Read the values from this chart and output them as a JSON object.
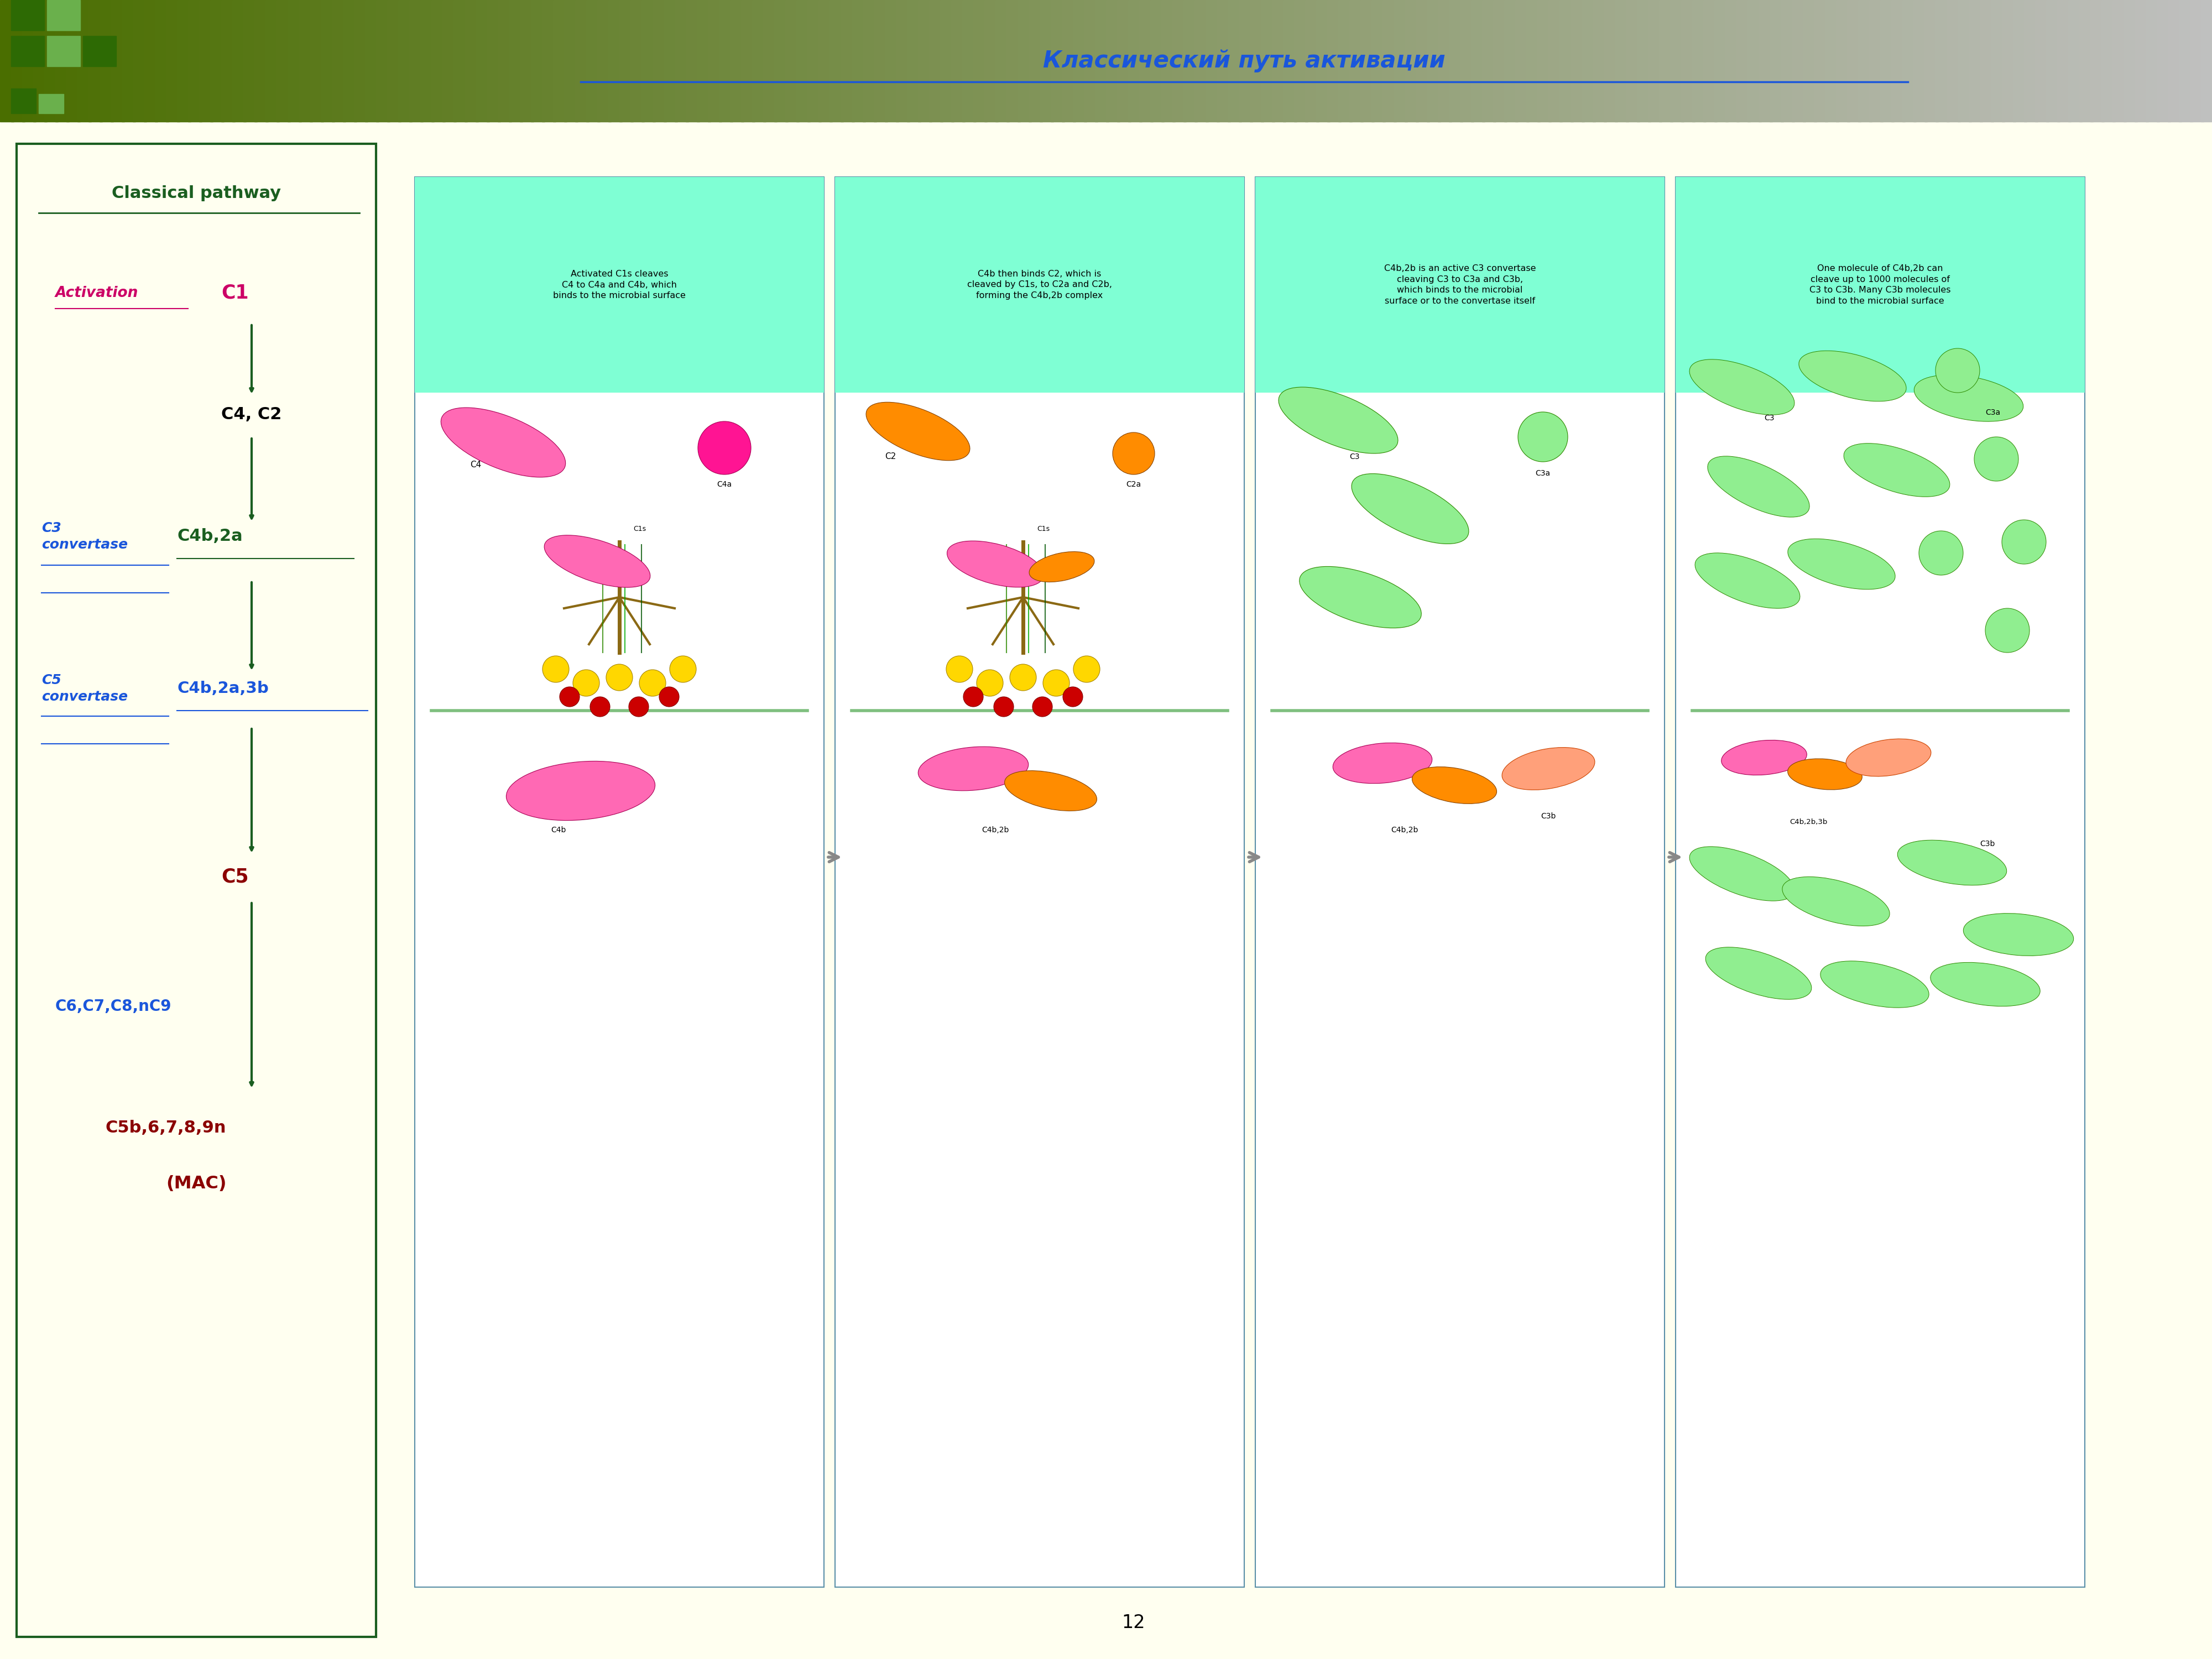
{
  "bg_color": "#fffff0",
  "header_grad_left": "#4a6e00",
  "header_grad_right": "#c0c0c0",
  "title_ru": "Классический путь активации",
  "left_box_title": "Classical pathway",
  "panel_texts": [
    "Activated C1s cleaves\nC4 to C4a and C4b, which\nbinds to the microbial surface",
    "C4b then binds C2, which is\ncleaved by C1s, to C2a and C2b,\nforming the C4b,2b complex",
    "C4b,2b is an active C3 convertase\ncleaving C3 to C3a and C3b,\nwhich binds to the microbial\nsurface or to the convertase itself",
    "One molecule of C4b,2b can\ncleave up to 1000 molecules of\nC3 to C3b. Many C3b molecules\nbind to the microbial surface"
  ],
  "panel_header_color": "#7fffd4",
  "page_num": "12"
}
